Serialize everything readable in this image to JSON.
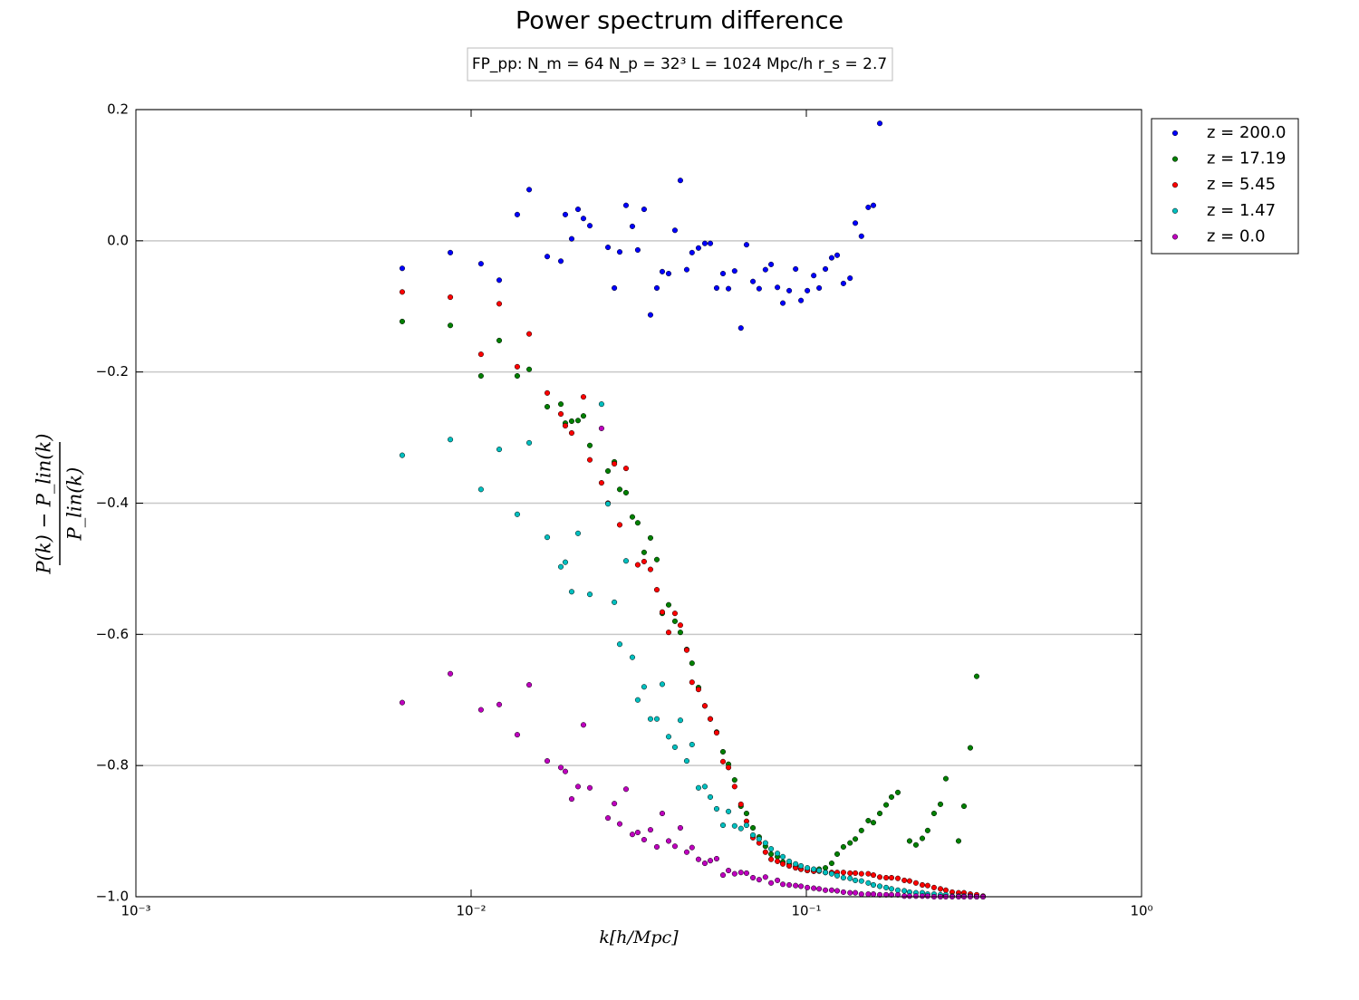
{
  "chart_data": {
    "type": "scatter",
    "title": "Power spectrum difference",
    "subtitle": "FP_pp:  N_m = 64   N_p = 32³    L = 1024 Mpc/h   r_s = 2.7",
    "xlabel": "k[h/Mpc]",
    "ylabel": {
      "numerator": "P(k) − P_lin(k)",
      "denominator": "P_lin(k)"
    },
    "xscale": "log",
    "xlim": [
      0.001,
      1
    ],
    "xticks": [
      {
        "value": 0.001,
        "label": "10⁻³"
      },
      {
        "value": 0.01,
        "label": "10⁻²"
      },
      {
        "value": 0.1,
        "label": "10⁻¹"
      },
      {
        "value": 1,
        "label": "10⁰"
      }
    ],
    "ylim": [
      -1.0,
      0.2
    ],
    "yticks": [
      0.2,
      {
        "value": 0,
        "label": "0.0"
      },
      {
        "value": -0.2,
        "label": "−0.2"
      },
      {
        "value": -0.4,
        "label": "−0.4"
      },
      {
        "value": -0.6,
        "label": "−0.6"
      },
      {
        "value": -0.8,
        "label": "−0.8"
      },
      {
        "value": -1.0,
        "label": "−1.0"
      }
    ],
    "grid": "y",
    "legend": "outside-upper-right",
    "series": [
      {
        "name": "z = 200.0",
        "color": "#0000ff",
        "x": [
          0.00623,
          0.00867,
          0.0107,
          0.01213,
          0.01373,
          0.0149,
          0.01687,
          0.01852,
          0.0191,
          0.01995,
          0.02084,
          0.02163,
          0.0226,
          0.0256,
          0.02675,
          0.02775,
          0.02898,
          0.03027,
          0.03141,
          0.03281,
          0.03428,
          0.03581,
          0.03717,
          0.03883,
          0.04055,
          0.04209,
          0.04397,
          0.0456,
          0.04767,
          0.0498,
          0.05171,
          0.054,
          0.05641,
          0.05858,
          0.0611,
          0.0638,
          0.0663,
          0.0693,
          0.0723,
          0.0755,
          0.0785,
          0.082,
          0.0851,
          0.0889,
          0.0929,
          0.0964,
          0.1007,
          0.1052,
          0.1092,
          0.114,
          0.119,
          0.1236,
          0.129,
          0.135,
          0.14,
          0.146,
          0.153,
          0.1585,
          0.1656
        ],
        "values": [
          -0.042,
          -0.018,
          -0.035,
          -0.06,
          0.04,
          0.078,
          -0.024,
          -0.031,
          0.04,
          0.003,
          0.048,
          0.034,
          0.023,
          -0.01,
          -0.072,
          -0.017,
          0.054,
          0.022,
          -0.014,
          0.048,
          -0.113,
          -0.072,
          -0.047,
          -0.05,
          0.016,
          0.092,
          -0.044,
          -0.018,
          -0.011,
          -0.004,
          -0.004,
          -0.072,
          -0.05,
          -0.073,
          -0.046,
          -0.133,
          -0.006,
          -0.062,
          -0.073,
          -0.044,
          -0.036,
          -0.071,
          -0.095,
          -0.076,
          -0.043,
          -0.091,
          -0.076,
          -0.053,
          -0.072,
          -0.043,
          -0.026,
          -0.022,
          -0.065,
          -0.057,
          0.027,
          0.007,
          0.051,
          0.054,
          0.179
        ]
      },
      {
        "name": "z = 17.19",
        "color": "#008000",
        "x": [
          0.00623,
          0.00867,
          0.0107,
          0.01213,
          0.01373,
          0.0149,
          0.01687,
          0.01852,
          0.0191,
          0.01995,
          0.02084,
          0.02163,
          0.0226,
          0.0256,
          0.02675,
          0.02775,
          0.02898,
          0.03027,
          0.03141,
          0.03281,
          0.03428,
          0.03581,
          0.03717,
          0.03883,
          0.04055,
          0.04209,
          0.04397,
          0.0456,
          0.04767,
          0.0498,
          0.05171,
          0.054,
          0.05641,
          0.05858,
          0.0611,
          0.0638,
          0.0663,
          0.0693,
          0.0723,
          0.0755,
          0.0785,
          0.082,
          0.0851,
          0.0889,
          0.0929,
          0.0964,
          0.1007,
          0.1052,
          0.1092,
          0.114,
          0.119,
          0.1236,
          0.129,
          0.135,
          0.14,
          0.146,
          0.153,
          0.1585,
          0.1656,
          0.173,
          0.1795,
          0.1875,
          0.2032,
          0.2123,
          0.2218,
          0.2301,
          0.2404,
          0.2512,
          0.2607,
          0.2845,
          0.2953,
          0.3084,
          0.3222
        ],
        "values": [
          -0.123,
          -0.129,
          -0.206,
          -0.152,
          -0.206,
          -0.196,
          -0.253,
          -0.249,
          -0.278,
          -0.275,
          -0.274,
          -0.267,
          -0.312,
          -0.351,
          -0.337,
          -0.379,
          -0.384,
          -0.421,
          -0.43,
          -0.475,
          -0.453,
          -0.486,
          -0.568,
          -0.555,
          -0.58,
          -0.597,
          -0.623,
          -0.644,
          -0.681,
          -0.709,
          -0.729,
          -0.749,
          -0.779,
          -0.798,
          -0.822,
          -0.862,
          -0.873,
          -0.895,
          -0.909,
          -0.923,
          -0.935,
          -0.939,
          -0.947,
          -0.95,
          -0.954,
          -0.958,
          -0.96,
          -0.961,
          -0.958,
          -0.956,
          -0.949,
          -0.935,
          -0.924,
          -0.918,
          -0.912,
          -0.899,
          -0.884,
          -0.887,
          -0.873,
          -0.86,
          -0.848,
          -0.841,
          -0.915,
          -0.921,
          -0.911,
          -0.899,
          -0.873,
          -0.859,
          -0.82,
          -0.915,
          -0.862,
          -0.773,
          -0.664
        ]
      },
      {
        "name": "z = 5.45",
        "color": "#ff0000",
        "x": [
          0.00623,
          0.00867,
          0.0107,
          0.01213,
          0.01373,
          0.0149,
          0.01687,
          0.01852,
          0.0191,
          0.01995,
          0.02163,
          0.0226,
          0.02449,
          0.0256,
          0.02675,
          0.02775,
          0.02898,
          0.03141,
          0.03281,
          0.03428,
          0.03581,
          0.03717,
          0.03883,
          0.04055,
          0.04209,
          0.04397,
          0.0456,
          0.04767,
          0.0498,
          0.05171,
          0.054,
          0.05641,
          0.05858,
          0.0611,
          0.0638,
          0.0663,
          0.0693,
          0.0723,
          0.0755,
          0.0785,
          0.082,
          0.0851,
          0.0889,
          0.0929,
          0.0964,
          0.1007,
          0.1052,
          0.1092,
          0.114,
          0.119,
          0.1236,
          0.129,
          0.135,
          0.14,
          0.146,
          0.153,
          0.1585,
          0.1656,
          0.173,
          0.1795,
          0.1875,
          0.196,
          0.2032,
          0.2123,
          0.2218,
          0.2301,
          0.2404,
          0.2512,
          0.2607,
          0.2723,
          0.2845,
          0.2953,
          0.3084,
          0.3222,
          0.3366
        ],
        "values": [
          -0.078,
          -0.086,
          -0.173,
          -0.096,
          -0.192,
          -0.142,
          -0.232,
          -0.264,
          -0.282,
          -0.293,
          -0.238,
          -0.334,
          -0.369,
          -0.4,
          -0.34,
          -0.433,
          -0.347,
          -0.494,
          -0.489,
          -0.501,
          -0.532,
          -0.566,
          -0.597,
          -0.568,
          -0.586,
          -0.624,
          -0.673,
          -0.684,
          -0.709,
          -0.729,
          -0.75,
          -0.794,
          -0.803,
          -0.832,
          -0.859,
          -0.885,
          -0.91,
          -0.918,
          -0.932,
          -0.943,
          -0.946,
          -0.95,
          -0.953,
          -0.956,
          -0.958,
          -0.96,
          -0.961,
          -0.961,
          -0.963,
          -0.963,
          -0.963,
          -0.963,
          -0.964,
          -0.964,
          -0.965,
          -0.965,
          -0.967,
          -0.97,
          -0.971,
          -0.971,
          -0.972,
          -0.975,
          -0.976,
          -0.979,
          -0.982,
          -0.983,
          -0.986,
          -0.988,
          -0.99,
          -0.993,
          -0.994,
          -0.994,
          -0.996,
          -0.997,
          -0.999
        ]
      },
      {
        "name": "z = 1.47",
        "color": "#00bfbf",
        "x": [
          0.00623,
          0.00867,
          0.0107,
          0.01213,
          0.01373,
          0.0149,
          0.01687,
          0.01852,
          0.0191,
          0.01995,
          0.02084,
          0.0226,
          0.02449,
          0.0256,
          0.02675,
          0.02775,
          0.02898,
          0.03027,
          0.03141,
          0.03281,
          0.03428,
          0.03581,
          0.03717,
          0.03883,
          0.04055,
          0.04209,
          0.04397,
          0.0456,
          0.04767,
          0.0498,
          0.05171,
          0.054,
          0.05641,
          0.05858,
          0.0611,
          0.0638,
          0.0663,
          0.0693,
          0.0723,
          0.0755,
          0.0785,
          0.082,
          0.0851,
          0.0889,
          0.0929,
          0.0964,
          0.1007,
          0.1052,
          0.1092,
          0.114,
          0.119,
          0.1236,
          0.129,
          0.135,
          0.14,
          0.146,
          0.153,
          0.1585,
          0.1656,
          0.173,
          0.1795,
          0.1875,
          0.196,
          0.2032,
          0.2123,
          0.2218,
          0.2301,
          0.2404,
          0.2512,
          0.2607,
          0.2723,
          0.2845,
          0.2953,
          0.3084,
          0.3222,
          0.3366
        ],
        "values": [
          -0.327,
          -0.303,
          -0.379,
          -0.318,
          -0.417,
          -0.308,
          -0.452,
          -0.497,
          -0.49,
          -0.535,
          -0.446,
          -0.539,
          -0.249,
          -0.401,
          -0.551,
          -0.615,
          -0.488,
          -0.635,
          -0.7,
          -0.68,
          -0.729,
          -0.729,
          -0.676,
          -0.756,
          -0.772,
          -0.731,
          -0.793,
          -0.768,
          -0.834,
          -0.832,
          -0.848,
          -0.866,
          -0.891,
          -0.87,
          -0.892,
          -0.896,
          -0.891,
          -0.906,
          -0.912,
          -0.918,
          -0.927,
          -0.934,
          -0.939,
          -0.946,
          -0.95,
          -0.953,
          -0.956,
          -0.958,
          -0.96,
          -0.963,
          -0.965,
          -0.968,
          -0.971,
          -0.972,
          -0.975,
          -0.976,
          -0.979,
          -0.982,
          -0.984,
          -0.986,
          -0.988,
          -0.99,
          -0.991,
          -0.993,
          -0.994,
          -0.994,
          -0.996,
          -0.996,
          -0.997,
          -0.997,
          -0.999,
          -0.999,
          -0.999,
          -0.999,
          -1.0,
          -1.0
        ]
      },
      {
        "name": "z = 0.0",
        "color": "#bf00bf",
        "x": [
          0.00623,
          0.00867,
          0.0107,
          0.01213,
          0.01373,
          0.0149,
          0.01687,
          0.01852,
          0.0191,
          0.01995,
          0.02084,
          0.02163,
          0.0226,
          0.02449,
          0.0256,
          0.02675,
          0.02775,
          0.02898,
          0.03027,
          0.03141,
          0.03281,
          0.03428,
          0.03581,
          0.03717,
          0.03883,
          0.04055,
          0.04209,
          0.04397,
          0.0456,
          0.04767,
          0.0498,
          0.05171,
          0.054,
          0.05641,
          0.05858,
          0.0611,
          0.0638,
          0.0663,
          0.0693,
          0.0723,
          0.0755,
          0.0785,
          0.082,
          0.0851,
          0.0889,
          0.0929,
          0.0964,
          0.1007,
          0.1052,
          0.1092,
          0.114,
          0.119,
          0.1236,
          0.129,
          0.135,
          0.14,
          0.146,
          0.153,
          0.1585,
          0.1656,
          0.173,
          0.1795,
          0.1875,
          0.196,
          0.2032,
          0.2123,
          0.2218,
          0.2301,
          0.2404,
          0.2512,
          0.2607,
          0.2723,
          0.2845,
          0.2953,
          0.3084,
          0.3222,
          0.3366
        ],
        "values": [
          -0.704,
          -0.66,
          -0.715,
          -0.707,
          -0.753,
          -0.677,
          -0.793,
          -0.803,
          -0.809,
          -0.851,
          -0.832,
          -0.738,
          -0.834,
          -0.286,
          -0.88,
          -0.858,
          -0.889,
          -0.836,
          -0.905,
          -0.902,
          -0.913,
          -0.898,
          -0.924,
          -0.873,
          -0.915,
          -0.923,
          -0.895,
          -0.932,
          -0.925,
          -0.943,
          -0.949,
          -0.945,
          -0.942,
          -0.967,
          -0.96,
          -0.965,
          -0.963,
          -0.964,
          -0.971,
          -0.974,
          -0.97,
          -0.979,
          -0.975,
          -0.981,
          -0.982,
          -0.983,
          -0.984,
          -0.986,
          -0.987,
          -0.988,
          -0.99,
          -0.99,
          -0.991,
          -0.993,
          -0.994,
          -0.994,
          -0.996,
          -0.996,
          -0.996,
          -0.997,
          -0.997,
          -0.997,
          -0.997,
          -0.999,
          -0.999,
          -0.999,
          -0.999,
          -0.999,
          -1.0,
          -1.0,
          -1.0,
          -1.0,
          -1.0,
          -1.0,
          -1.0,
          -1.0,
          -1.0
        ]
      }
    ]
  }
}
